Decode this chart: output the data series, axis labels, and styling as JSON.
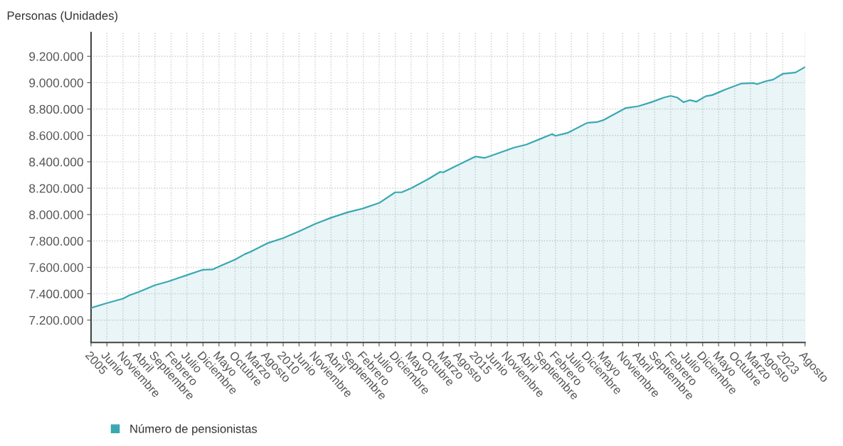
{
  "chart_data": {
    "type": "area",
    "ylabel": "Personas (Unidades)",
    "x": [
      "2005-01",
      "2005-06",
      "2005-11",
      "2006-01",
      "2006-04",
      "2006-09",
      "2007-01",
      "2007-07",
      "2007-12",
      "2008-03",
      "2008-05",
      "2008-10",
      "2009-01",
      "2009-03",
      "2009-08",
      "2010-01",
      "2010-06",
      "2010-11",
      "2011-04",
      "2011-09",
      "2012-02",
      "2012-07",
      "2012-12",
      "2013-02",
      "2013-05",
      "2013-10",
      "2014-02",
      "2014-03",
      "2014-08",
      "2015-01",
      "2015-04",
      "2015-06",
      "2016-01",
      "2016-05",
      "2017-01",
      "2017-02",
      "2017-06",
      "2017-12",
      "2018-03",
      "2018-05",
      "2018-12",
      "2019-04",
      "2019-08",
      "2019-12",
      "2020-02",
      "2020-04",
      "2020-06",
      "2020-08",
      "2020-10",
      "2021-01",
      "2021-03",
      "2021-07",
      "2021-12",
      "2022-04",
      "2022-05",
      "2022-08",
      "2022-10",
      "2023-01",
      "2023-05",
      "2023-08"
    ],
    "series": [
      {
        "name": "Número de pensionistas",
        "color": "#3aa8b2",
        "values": [
          7292000,
          7329000,
          7363000,
          7388000,
          7414000,
          7465000,
          7492000,
          7541000,
          7582000,
          7584000,
          7606000,
          7659000,
          7700000,
          7720000,
          7782000,
          7822000,
          7873000,
          7929000,
          7976000,
          8016000,
          8047000,
          8088000,
          8169000,
          8169000,
          8200000,
          8265000,
          8324000,
          8320000,
          8380000,
          8440000,
          8430000,
          8446000,
          8507000,
          8531000,
          8611000,
          8597000,
          8621000,
          8696000,
          8701000,
          8716000,
          8808000,
          8822000,
          8852000,
          8888000,
          8900000,
          8888000,
          8852000,
          8868000,
          8856000,
          8898000,
          8906000,
          8947000,
          8993000,
          8997000,
          8989000,
          9013000,
          9023000,
          9067000,
          9077000,
          9118000
        ]
      }
    ],
    "xlim": [
      "2005-01",
      "2023-08"
    ],
    "xticks": [
      {
        "value": "2005-01",
        "label": "2005"
      },
      {
        "value": "2005-06",
        "label": "Junio"
      },
      {
        "value": "2005-11",
        "label": "Noviembre"
      },
      {
        "value": "2006-04",
        "label": "Abril"
      },
      {
        "value": "2006-09",
        "label": "Septiembre"
      },
      {
        "value": "2007-02",
        "label": "Febrero"
      },
      {
        "value": "2007-07",
        "label": "Julio"
      },
      {
        "value": "2007-12",
        "label": "Diciembre"
      },
      {
        "value": "2008-05",
        "label": "Mayo"
      },
      {
        "value": "2008-10",
        "label": "Octubre"
      },
      {
        "value": "2009-03",
        "label": "Marzo"
      },
      {
        "value": "2009-08",
        "label": "Agosto"
      },
      {
        "value": "2010-01",
        "label": "2010"
      },
      {
        "value": "2010-06",
        "label": "Junio"
      },
      {
        "value": "2010-11",
        "label": "Noviembre"
      },
      {
        "value": "2011-04",
        "label": "Abril"
      },
      {
        "value": "2011-09",
        "label": "Septiembre"
      },
      {
        "value": "2012-02",
        "label": "Febrero"
      },
      {
        "value": "2012-07",
        "label": "Julio"
      },
      {
        "value": "2012-12",
        "label": "Diciembre"
      },
      {
        "value": "2013-05",
        "label": "Mayo"
      },
      {
        "value": "2013-10",
        "label": "Octubre"
      },
      {
        "value": "2014-03",
        "label": "Marzo"
      },
      {
        "value": "2014-08",
        "label": "Agosto"
      },
      {
        "value": "2015-01",
        "label": "2015"
      },
      {
        "value": "2015-06",
        "label": "Junio"
      },
      {
        "value": "2015-11",
        "label": "Noviembre"
      },
      {
        "value": "2016-04",
        "label": "Abril"
      },
      {
        "value": "2016-09",
        "label": "Septiembre"
      },
      {
        "value": "2017-02",
        "label": "Febrero"
      },
      {
        "value": "2017-07",
        "label": "Julio"
      },
      {
        "value": "2017-12",
        "label": "Diciembre"
      },
      {
        "value": "2018-05",
        "label": "Mayo"
      },
      {
        "value": "2018-11",
        "label": "Noviembre"
      },
      {
        "value": "2019-04",
        "label": "Abril"
      },
      {
        "value": "2019-09",
        "label": "Septiembre"
      },
      {
        "value": "2020-02",
        "label": "Febrero"
      },
      {
        "value": "2020-07",
        "label": "Julio"
      },
      {
        "value": "2020-12",
        "label": "Diciembre"
      },
      {
        "value": "2021-05",
        "label": "Mayo"
      },
      {
        "value": "2021-10",
        "label": "Octubre"
      },
      {
        "value": "2022-03",
        "label": "Marzo"
      },
      {
        "value": "2022-08",
        "label": "Agosto"
      },
      {
        "value": "2023-01",
        "label": "2023"
      },
      {
        "value": "2023-08",
        "label": "Agosto"
      }
    ],
    "ylim": [
      7030000,
      9380000
    ],
    "yticks": [
      {
        "value": 7200000,
        "label": "7.200.000"
      },
      {
        "value": 7400000,
        "label": "7.400.000"
      },
      {
        "value": 7600000,
        "label": "7.600.000"
      },
      {
        "value": 7800000,
        "label": "7.800.000"
      },
      {
        "value": 8000000,
        "label": "8.000.000"
      },
      {
        "value": 8200000,
        "label": "8.200.000"
      },
      {
        "value": 8400000,
        "label": "8.400.000"
      },
      {
        "value": 8600000,
        "label": "8.600.000"
      },
      {
        "value": 8800000,
        "label": "8.800.000"
      },
      {
        "value": 9000000,
        "label": "9.000.000"
      },
      {
        "value": 9200000,
        "label": "9.200.000"
      }
    ],
    "grid": true,
    "legend": "bottom left",
    "marker": "none",
    "line_style": "solid"
  }
}
